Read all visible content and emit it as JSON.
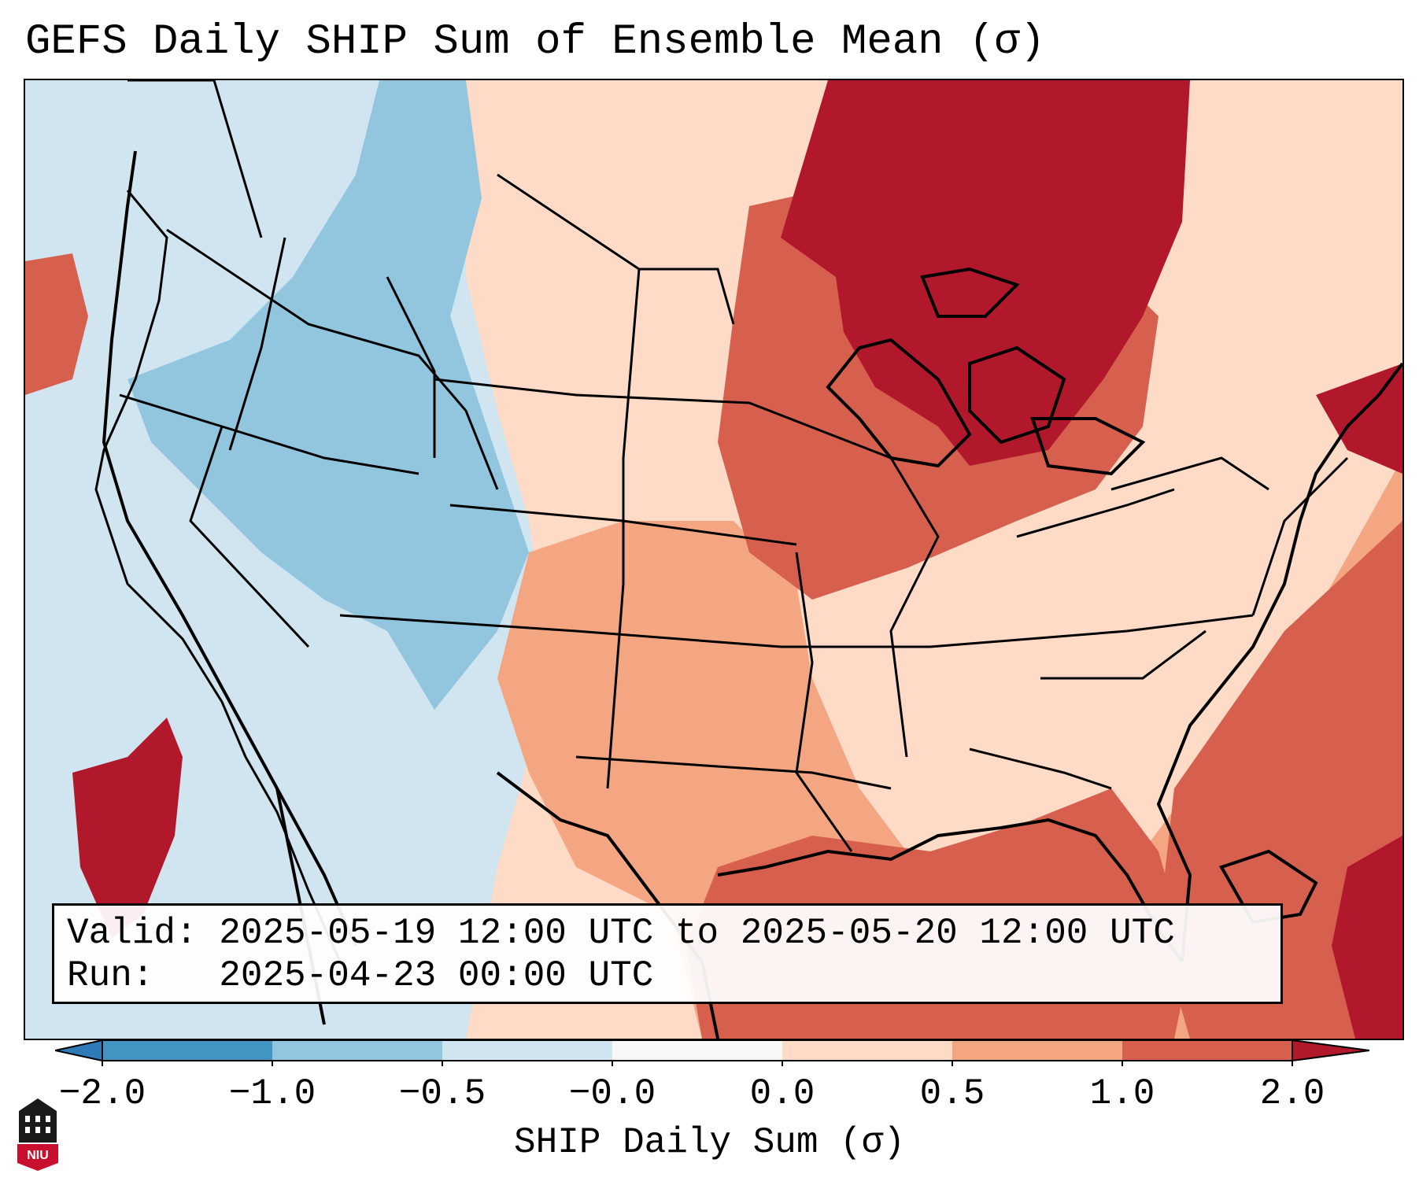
{
  "title": "GEFS Daily SHIP Sum of Ensemble Mean (σ)",
  "info": {
    "valid_line": "Valid: 2025-05-19 12:00 UTC to 2025-05-20 12:00 UTC",
    "run_line": "Run:   2025-04-23 00:00 UTC"
  },
  "colorbar": {
    "label": "SHIP Daily Sum (σ)",
    "ticks": [
      "−2.0",
      "−1.0",
      "−0.5",
      "−0.0",
      "0.0",
      "0.5",
      "1.0",
      "2.0"
    ],
    "colors": {
      "extend_low": "#2f7ab9",
      "b_m2_m1": "#4393c3",
      "b_m1_m05": "#92c5de",
      "b_m05_0": "#d1e5f0",
      "b_0_0": "#f7f7f7",
      "b_0_05": "#fddbc7",
      "b_05_1": "#f4a582",
      "b_1_2": "#d6604d",
      "extend_high": "#b2182b"
    }
  },
  "logo": {
    "text": "NIU",
    "color": "#c8102e"
  },
  "map": {
    "field_colors": {
      "below_mid": "#92c5de",
      "below_low": "#d1e5f0",
      "above_low": "#fddbc7",
      "above_mid": "#f4a582",
      "above_high": "#d6604d",
      "extreme": "#b2182b"
    },
    "regions": [
      {
        "name": "west-slightly-below",
        "level": "below_low"
      },
      {
        "name": "rockies-below",
        "level": "below_mid"
      },
      {
        "name": "plains-slightly-above",
        "level": "above_low"
      },
      {
        "name": "central-above",
        "level": "above_mid"
      },
      {
        "name": "midwest-high",
        "level": "above_high"
      },
      {
        "name": "great-lakes-extreme",
        "level": "extreme"
      },
      {
        "name": "pacific-extreme",
        "level": "extreme"
      },
      {
        "name": "atlantic-extreme",
        "level": "extreme"
      }
    ]
  }
}
